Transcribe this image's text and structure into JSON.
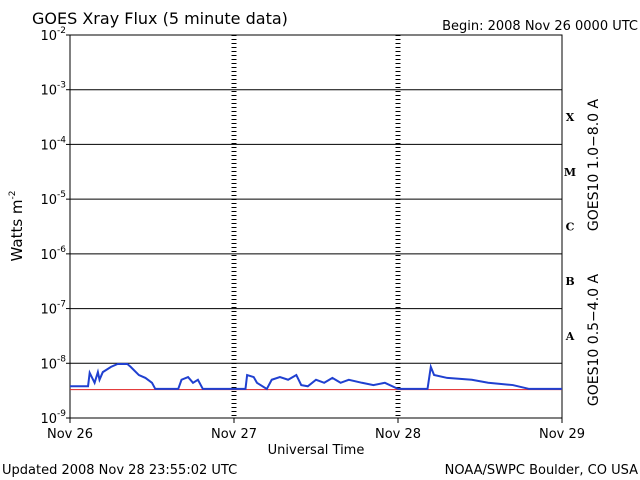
{
  "chart_data": {
    "type": "line",
    "title": "GOES Xray Flux (5 minute data)",
    "subtitle": "Begin:  2008 Nov 26 0000 UTC",
    "x_label": "Universal Time",
    "y_label": {
      "text": "Watts m",
      "exponent": "-2"
    },
    "footer_left": "Updated 2008 Nov 28 23:55:02 UTC",
    "footer_right": "NOAA/SWPC Boulder, CO USA",
    "log_y": true,
    "grid": true,
    "xlim": [
      0,
      3
    ],
    "xticks": [
      {
        "value": 0,
        "label": "Nov 26"
      },
      {
        "value": 1,
        "label": "Nov 27"
      },
      {
        "value": 2,
        "label": "Nov 28"
      },
      {
        "value": 3,
        "label": "Nov 29"
      }
    ],
    "ylim": [
      1e-09,
      0.01
    ],
    "yticks": [
      {
        "value": 1e-09,
        "label": "10",
        "exponent": "-9"
      },
      {
        "value": 1e-08,
        "label": "10",
        "exponent": "-8"
      },
      {
        "value": 1e-07,
        "label": "10",
        "exponent": "-7"
      },
      {
        "value": 1e-06,
        "label": "10",
        "exponent": "-6"
      },
      {
        "value": 1e-05,
        "label": "10",
        "exponent": "-5"
      },
      {
        "value": 0.0001,
        "label": "10",
        "exponent": "-4"
      },
      {
        "value": 0.001,
        "label": "10",
        "exponent": "-3"
      },
      {
        "value": 0.01,
        "label": "10",
        "exponent": "-2"
      }
    ],
    "flare_classes": [
      "X",
      "M",
      "C",
      "B",
      "A"
    ],
    "series": [
      {
        "name": "GOES10 1.0−8.0 A",
        "color": "#e02020",
        "x": [
          0,
          3
        ],
        "values": [
          3.3e-09,
          3.3e-09
        ]
      },
      {
        "name": "GOES10 0.5−4.0 A",
        "color": "#2040d0",
        "x": [
          0,
          0.11,
          0.12,
          0.15,
          0.17,
          0.18,
          0.2,
          0.25,
          0.29,
          0.35,
          0.37,
          0.42,
          0.46,
          0.5,
          0.52,
          0.66,
          0.68,
          0.72,
          0.75,
          0.78,
          0.81,
          1.07,
          1.08,
          1.12,
          1.14,
          1.2,
          1.23,
          1.28,
          1.33,
          1.38,
          1.41,
          1.45,
          1.5,
          1.55,
          1.6,
          1.65,
          1.7,
          1.78,
          1.85,
          1.92,
          2.0,
          2.18,
          2.2,
          2.22,
          2.3,
          2.45,
          2.55,
          2.7,
          2.8,
          3.0
        ],
        "values": [
          3.8e-09,
          3.8e-09,
          6.7e-09,
          4.4e-09,
          6.9e-09,
          5e-09,
          6.9e-09,
          8.6e-09,
          9.7e-09,
          9.7e-09,
          8.6e-09,
          6.1e-09,
          5.4e-09,
          4.4e-09,
          3.4e-09,
          3.4e-09,
          5e-09,
          5.6e-09,
          4.4e-09,
          5e-09,
          3.4e-09,
          3.4e-09,
          6.1e-09,
          5.6e-09,
          4.4e-09,
          3.4e-09,
          5e-09,
          5.6e-09,
          5e-09,
          6.1e-09,
          4e-09,
          3.8e-09,
          5e-09,
          4.4e-09,
          5.4e-09,
          4.4e-09,
          5e-09,
          4.4e-09,
          4e-09,
          4.4e-09,
          3.4e-09,
          3.4e-09,
          8.6e-09,
          6.1e-09,
          5.4e-09,
          5e-09,
          4.4e-09,
          4e-09,
          3.4e-09,
          3.4e-09
        ]
      }
    ]
  }
}
